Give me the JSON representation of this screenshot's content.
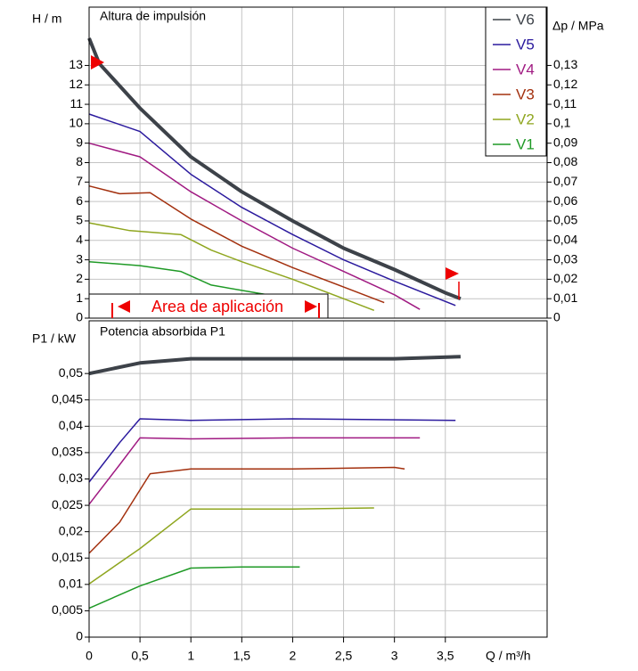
{
  "chart_data": [
    {
      "type": "line",
      "title": "Altura de impulsión",
      "y_label": "H / m",
      "y2_label": "Δp / MPa",
      "xlim": [
        0,
        4.5
      ],
      "ylim": [
        0,
        16
      ],
      "yticks": [
        0,
        1,
        2,
        3,
        4,
        5,
        6,
        7,
        8,
        9,
        10,
        11,
        12,
        13
      ],
      "y2lim": [
        0,
        0.16
      ],
      "y2ticks": [
        0,
        {
          "value": 0.01,
          "label": "0,01"
        },
        {
          "value": 0.02,
          "label": "0,02"
        },
        {
          "value": 0.03,
          "label": "0,03"
        },
        {
          "value": 0.04,
          "label": "0,04"
        },
        {
          "value": 0.05,
          "label": "0,05"
        },
        {
          "value": 0.06,
          "label": "0,06"
        },
        {
          "value": 0.07,
          "label": "0,07"
        },
        {
          "value": 0.08,
          "label": "0,08"
        },
        {
          "value": 0.09,
          "label": "0,09"
        },
        {
          "value": 0.1,
          "label": "0,1"
        },
        {
          "value": 0.11,
          "label": "0,11"
        },
        {
          "value": 0.12,
          "label": "0,12"
        },
        {
          "value": 0.13,
          "label": "0,13"
        }
      ],
      "grid": true,
      "legend": "top-right",
      "annotation": "Area de aplicación",
      "series": [
        {
          "name": "V6",
          "color": "#3d4249",
          "x": [
            0,
            0.1,
            0.5,
            1,
            1.5,
            2,
            2.5,
            3,
            3.5,
            3.65
          ],
          "values": [
            14.4,
            13.1,
            10.8,
            8.3,
            6.5,
            5.0,
            3.6,
            2.5,
            1.3,
            1.0
          ]
        },
        {
          "name": "V5",
          "color": "#2b1a9e",
          "x": [
            0,
            0.5,
            1,
            1.5,
            2,
            2.5,
            3,
            3.6
          ],
          "values": [
            10.5,
            9.6,
            7.4,
            5.7,
            4.3,
            3.0,
            1.9,
            0.65
          ]
        },
        {
          "name": "V4",
          "color": "#a01a82",
          "x": [
            0,
            0.5,
            1,
            1.5,
            2,
            2.5,
            3,
            3.25
          ],
          "values": [
            9.0,
            8.3,
            6.5,
            5.0,
            3.6,
            2.4,
            1.2,
            0.45
          ]
        },
        {
          "name": "V3",
          "color": "#a3300e",
          "x": [
            0,
            0.3,
            0.6,
            1,
            1.5,
            2,
            2.5,
            2.9
          ],
          "values": [
            6.8,
            6.4,
            6.45,
            5.1,
            3.7,
            2.6,
            1.6,
            0.8
          ]
        },
        {
          "name": "V2",
          "color": "#8fa61f",
          "x": [
            0,
            0.4,
            0.9,
            1.2,
            1.5,
            2,
            2.5,
            2.8
          ],
          "values": [
            4.9,
            4.5,
            4.3,
            3.5,
            2.9,
            2.0,
            1.0,
            0.4
          ]
        },
        {
          "name": "V1",
          "color": "#1f9a26",
          "x": [
            0,
            0.5,
            0.9,
            1.2,
            1.75
          ],
          "values": [
            2.9,
            2.7,
            2.4,
            1.7,
            1.2
          ]
        }
      ]
    },
    {
      "type": "line",
      "title": "Potencia absorbida P1",
      "y_label": "P1 / kW",
      "x_label": "Q / m³/h",
      "xlim": [
        0,
        4.5
      ],
      "xticks": [
        0,
        {
          "value": 0.5,
          "label": "0,5"
        },
        1,
        {
          "value": 1.5,
          "label": "1,5"
        },
        2,
        {
          "value": 2.5,
          "label": "2,5"
        },
        3,
        {
          "value": 3.5,
          "label": "3,5"
        }
      ],
      "ylim": [
        0,
        0.06
      ],
      "yticks": [
        0,
        {
          "value": 0.005,
          "label": "0,005"
        },
        {
          "value": 0.01,
          "label": "0,01"
        },
        {
          "value": 0.015,
          "label": "0,015"
        },
        {
          "value": 0.02,
          "label": "0,02"
        },
        {
          "value": 0.025,
          "label": "0,025"
        },
        {
          "value": 0.03,
          "label": "0,03"
        },
        {
          "value": 0.035,
          "label": "0,035"
        },
        {
          "value": 0.04,
          "label": "0,04"
        },
        {
          "value": 0.045,
          "label": "0,045"
        },
        {
          "value": 0.05,
          "label": "0,05"
        }
      ],
      "grid": true,
      "series": [
        {
          "color": "#3d4249",
          "x": [
            0,
            0.5,
            1,
            2,
            3,
            3.65
          ],
          "values": [
            0.05,
            0.052,
            0.0528,
            0.0528,
            0.0528,
            0.0532
          ]
        },
        {
          "color": "#2b1a9e",
          "x": [
            0,
            0.3,
            0.5,
            1,
            2,
            3.6
          ],
          "values": [
            0.0294,
            0.0369,
            0.0414,
            0.0411,
            0.0414,
            0.0411
          ]
        },
        {
          "color": "#a01a82",
          "x": [
            0,
            0.3,
            0.5,
            1,
            2,
            3.25
          ],
          "values": [
            0.0252,
            0.0327,
            0.0378,
            0.0376,
            0.0378,
            0.0378
          ]
        },
        {
          "color": "#a3300e",
          "x": [
            0,
            0.3,
            0.6,
            1,
            2,
            3,
            3.1
          ],
          "values": [
            0.0159,
            0.0218,
            0.031,
            0.0319,
            0.0319,
            0.0322,
            0.0319
          ]
        },
        {
          "color": "#8fa61f",
          "x": [
            0,
            0.5,
            1,
            2,
            2.8
          ],
          "values": [
            0.0101,
            0.0168,
            0.0243,
            0.0243,
            0.0245
          ]
        },
        {
          "color": "#1f9a26",
          "x": [
            0,
            0.5,
            1,
            1.5,
            2.07
          ],
          "values": [
            0.0055,
            0.0097,
            0.0131,
            0.0133,
            0.0133
          ]
        }
      ]
    }
  ]
}
